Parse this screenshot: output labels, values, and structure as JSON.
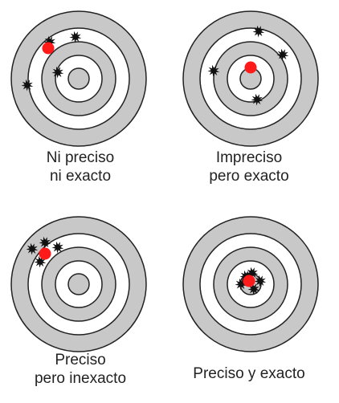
{
  "colors": {
    "ring_gray": "#c8c8c8",
    "ring_stroke": "#222222",
    "ring_white": "#ffffff",
    "shot": "#111111",
    "center_mark": "#ff1a1a",
    "text": "#222222"
  },
  "targets": [
    {
      "id": "neither",
      "caption_lines": [
        "Ni preciso",
        "ni exacto"
      ],
      "center_mark": true
    },
    {
      "id": "imprecise-accurate",
      "caption_lines": [
        "Impreciso",
        "pero exacto"
      ],
      "center_mark": true
    },
    {
      "id": "precise-inaccurate",
      "caption_lines": [
        "Preciso",
        "pero inexacto"
      ],
      "center_mark": true
    },
    {
      "id": "precise-accurate",
      "caption_lines": [
        "Preciso y exacto"
      ],
      "center_mark": true
    }
  ]
}
